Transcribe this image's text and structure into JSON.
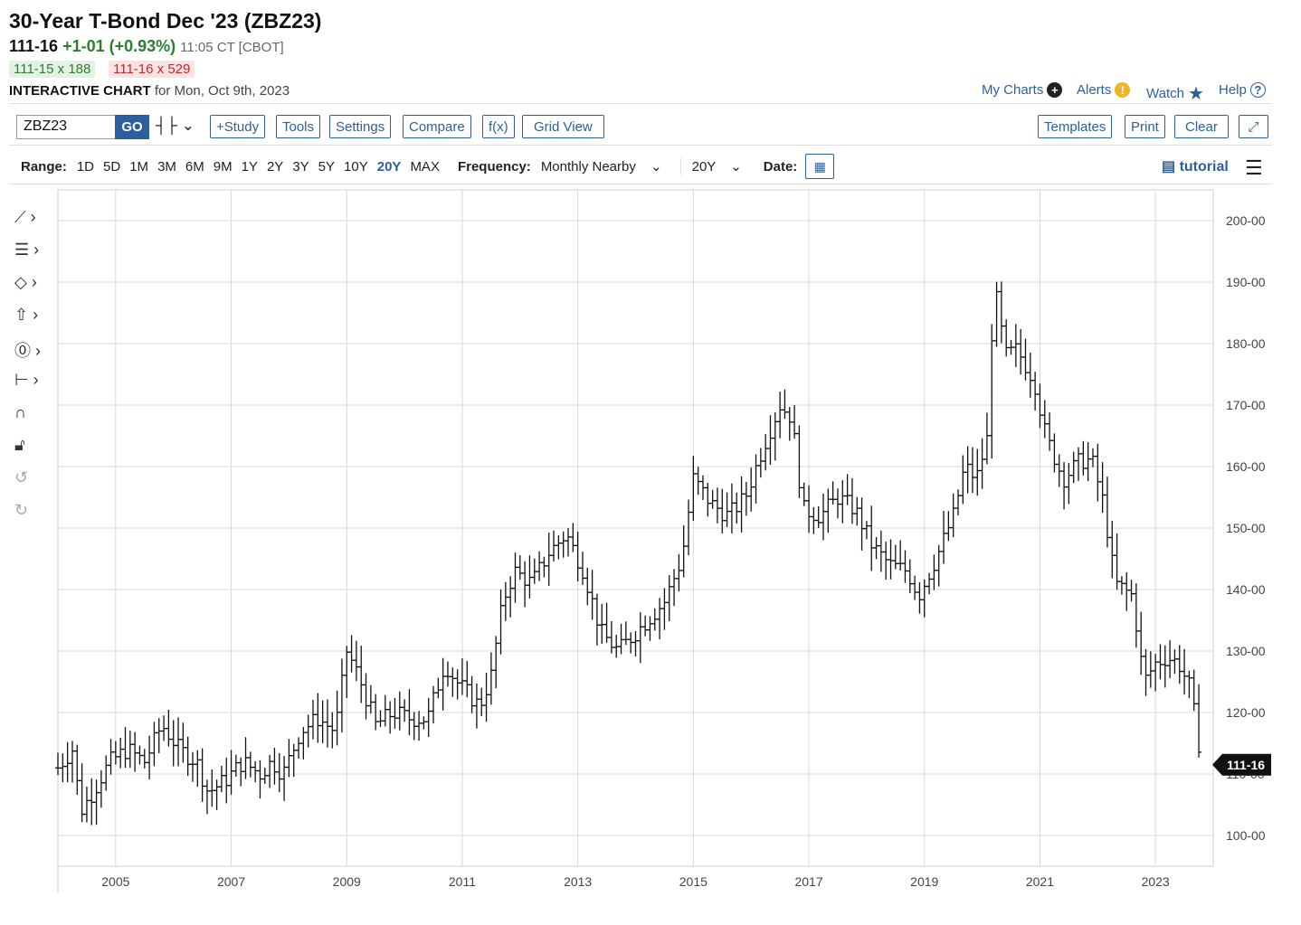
{
  "header": {
    "title": "30-Year T-Bond Dec '23 (ZBZ23)",
    "last": "111-16",
    "change": "+1-01 (+0.93%)",
    "time": "11:05 CT [CBOT]",
    "bid": "111-15 x 188",
    "ask": "111-16 x 529",
    "chart_label": "INTERACTIVE CHART",
    "chart_date": "for Mon, Oct 9th, 2023"
  },
  "top_links": {
    "my_charts": "My Charts",
    "alerts": "Alerts",
    "watch": "Watch",
    "help": "Help"
  },
  "toolbar": {
    "symbol": "ZBZ23",
    "go": "GO",
    "study": "+Study",
    "tools": "Tools",
    "settings": "Settings",
    "compare": "Compare",
    "fx": "f(x)",
    "grid_view": "Grid View",
    "templates": "Templates",
    "print": "Print",
    "clear": "Clear"
  },
  "range_bar": {
    "range_label": "Range:",
    "ranges": [
      "1D",
      "5D",
      "1M",
      "3M",
      "6M",
      "9M",
      "1Y",
      "2Y",
      "3Y",
      "5Y",
      "10Y",
      "20Y",
      "MAX"
    ],
    "selected": "20Y",
    "frequency_label": "Frequency:",
    "frequency": "Monthly Nearby",
    "period": "20Y",
    "date_label": "Date:",
    "tutorial": "tutorial"
  },
  "colors": {
    "accent": "#2b5f9e",
    "up": "#2e7d32",
    "down": "#c62828",
    "bar": "#111111",
    "grid": "#d9d9d9"
  },
  "chart_data": {
    "type": "ohlc",
    "frequency": "monthly",
    "last_price_label": "111-16",
    "x_ticks": [
      "2005",
      "2007",
      "2009",
      "2011",
      "2013",
      "2015",
      "2017",
      "2019",
      "2021",
      "2023"
    ],
    "y_ticks": [
      "100-00",
      "110-00",
      "120-00",
      "130-00",
      "140-00",
      "150-00",
      "160-00",
      "170-00",
      "180-00",
      "190-00",
      "200-00"
    ],
    "ylim": [
      95,
      205
    ],
    "xlim": [
      2004.0,
      2024.0
    ],
    "series": [
      {
        "name": "",
        "points": [
          [
            2004.0,
            111
          ],
          [
            2004.25,
            114
          ],
          [
            2004.4,
            104
          ],
          [
            2004.6,
            107
          ],
          [
            2004.9,
            112
          ],
          [
            2005.2,
            114
          ],
          [
            2005.5,
            112
          ],
          [
            2005.8,
            118
          ],
          [
            2006.1,
            114
          ],
          [
            2006.4,
            112
          ],
          [
            2006.6,
            107
          ],
          [
            2006.9,
            109
          ],
          [
            2007.2,
            112
          ],
          [
            2007.5,
            110
          ],
          [
            2007.7,
            112
          ],
          [
            2007.9,
            110
          ],
          [
            2008.2,
            117
          ],
          [
            2008.5,
            119
          ],
          [
            2008.8,
            117
          ],
          [
            2009.0,
            130
          ],
          [
            2009.2,
            126
          ],
          [
            2009.5,
            118
          ],
          [
            2009.8,
            120
          ],
          [
            2010.1,
            119
          ],
          [
            2010.4,
            119
          ],
          [
            2010.7,
            128
          ],
          [
            2010.9,
            125
          ],
          [
            2011.1,
            123
          ],
          [
            2011.3,
            121
          ],
          [
            2011.5,
            126
          ],
          [
            2011.7,
            138
          ],
          [
            2011.9,
            143
          ],
          [
            2012.2,
            141
          ],
          [
            2012.5,
            146
          ],
          [
            2012.8,
            149
          ],
          [
            2013.1,
            143
          ],
          [
            2013.4,
            133
          ],
          [
            2013.7,
            130
          ],
          [
            2013.9,
            132
          ],
          [
            2014.2,
            135
          ],
          [
            2014.5,
            138
          ],
          [
            2014.8,
            145
          ],
          [
            2015.0,
            158
          ],
          [
            2015.3,
            154
          ],
          [
            2015.6,
            152
          ],
          [
            2015.9,
            155
          ],
          [
            2016.2,
            163
          ],
          [
            2016.5,
            170
          ],
          [
            2016.7,
            168
          ],
          [
            2016.9,
            153
          ],
          [
            2017.2,
            152
          ],
          [
            2017.5,
            155
          ],
          [
            2017.8,
            153
          ],
          [
            2018.1,
            147
          ],
          [
            2018.4,
            144
          ],
          [
            2018.7,
            143
          ],
          [
            2018.9,
            139
          ],
          [
            2019.2,
            145
          ],
          [
            2019.5,
            152
          ],
          [
            2019.7,
            160
          ],
          [
            2019.9,
            158
          ],
          [
            2020.1,
            165
          ],
          [
            2020.2,
            190
          ],
          [
            2020.4,
            178
          ],
          [
            2020.6,
            179
          ],
          [
            2020.9,
            174
          ],
          [
            2021.1,
            165
          ],
          [
            2021.4,
            158
          ],
          [
            2021.7,
            161
          ],
          [
            2021.9,
            161
          ],
          [
            2022.1,
            154
          ],
          [
            2022.3,
            141
          ],
          [
            2022.6,
            139
          ],
          [
            2022.8,
            125
          ],
          [
            2023.0,
            128
          ],
          [
            2023.2,
            129
          ],
          [
            2023.4,
            128
          ],
          [
            2023.6,
            124
          ],
          [
            2023.75,
            115
          ],
          [
            2023.8,
            111.5
          ]
        ]
      }
    ]
  }
}
